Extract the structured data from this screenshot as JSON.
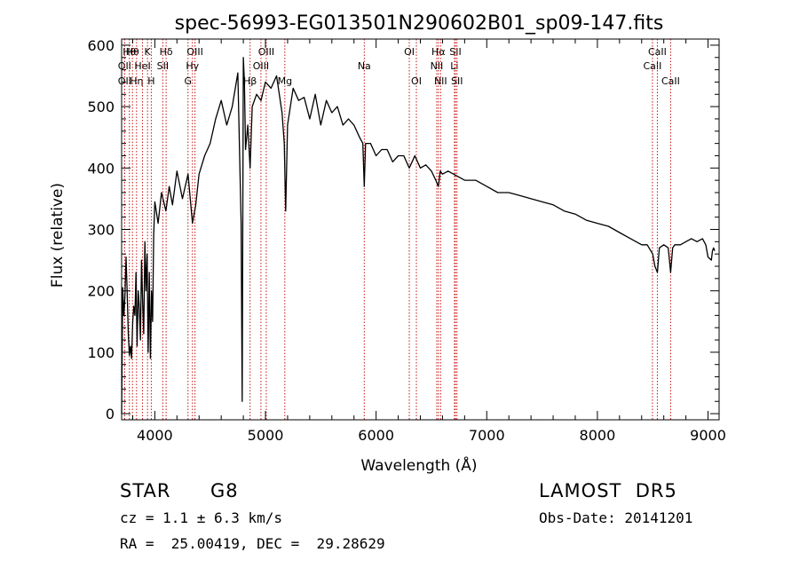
{
  "chart_data": {
    "type": "line",
    "title": "spec-56993-EG013501N290602B01_sp09-147.fits",
    "xlabel": "Wavelength (Å)",
    "ylabel": "Flux (relative)",
    "xlim": [
      3700,
      9100
    ],
    "ylim": [
      -10,
      610
    ],
    "xticks": [
      4000,
      5000,
      6000,
      7000,
      8000,
      9000
    ],
    "yticks": [
      0,
      100,
      200,
      300,
      400,
      500,
      600
    ],
    "grid": false,
    "series": [
      {
        "x": [
          3700,
          3710,
          3720,
          3730,
          3740,
          3750,
          3760,
          3770,
          3780,
          3790,
          3800,
          3810,
          3820,
          3830,
          3840,
          3850,
          3860,
          3870,
          3880,
          3890,
          3900,
          3910,
          3920,
          3930,
          3940,
          3950,
          3960,
          3970,
          3980,
          3990,
          4000,
          4030,
          4060,
          4100,
          4130,
          4160,
          4200,
          4250,
          4300,
          4340,
          4370,
          4400,
          4450,
          4500,
          4550,
          4600,
          4650,
          4700,
          4750,
          4780,
          4790,
          4800,
          4810,
          4820,
          4840,
          4861,
          4880,
          4920,
          4960,
          5000,
          5050,
          5100,
          5150,
          5170,
          5183,
          5200,
          5250,
          5300,
          5350,
          5400,
          5450,
          5500,
          5550,
          5600,
          5650,
          5700,
          5750,
          5800,
          5850,
          5880,
          5893,
          5905,
          5950,
          6000,
          6050,
          6100,
          6150,
          6200,
          6250,
          6300,
          6350,
          6400,
          6450,
          6500,
          6540,
          6563,
          6580,
          6600,
          6650,
          6700,
          6800,
          6900,
          7000,
          7100,
          7200,
          7300,
          7400,
          7500,
          7600,
          7700,
          7800,
          7900,
          8000,
          8100,
          8200,
          8300,
          8400,
          8450,
          8500,
          8520,
          8542,
          8560,
          8600,
          8640,
          8662,
          8680,
          8700,
          8750,
          8800,
          8850,
          8900,
          8950,
          8980,
          9000,
          9030,
          9040,
          9050,
          9060
        ],
        "y": [
          0,
          205,
          160,
          190,
          255,
          200,
          130,
          95,
          110,
          90,
          150,
          175,
          160,
          230,
          110,
          200,
          175,
          120,
          250,
          180,
          130,
          280,
          200,
          260,
          100,
          230,
          90,
          200,
          150,
          290,
          345,
          310,
          360,
          330,
          370,
          340,
          395,
          350,
          390,
          310,
          340,
          390,
          420,
          440,
          480,
          510,
          470,
          500,
          555,
          310,
          20,
          580,
          540,
          430,
          470,
          400,
          500,
          520,
          510,
          540,
          530,
          550,
          490,
          440,
          330,
          470,
          530,
          510,
          515,
          480,
          520,
          470,
          510,
          490,
          500,
          470,
          480,
          470,
          450,
          440,
          370,
          440,
          440,
          420,
          430,
          430,
          410,
          420,
          420,
          400,
          420,
          400,
          405,
          395,
          380,
          370,
          395,
          390,
          395,
          390,
          380,
          380,
          370,
          360,
          360,
          355,
          350,
          345,
          340,
          330,
          325,
          315,
          310,
          305,
          295,
          285,
          275,
          275,
          260,
          240,
          230,
          270,
          275,
          270,
          230,
          270,
          275,
          275,
          280,
          285,
          280,
          285,
          275,
          255,
          250,
          265,
          270,
          265
        ]
      }
    ],
    "line_markers": [
      {
        "wavelength": 3727,
        "label": "OII",
        "row": 2
      },
      {
        "wavelength": 3727,
        "label": "OII",
        "row": 3
      },
      {
        "wavelength": 3770,
        "label": "Hθ",
        "row": 1
      },
      {
        "wavelength": 3798,
        "label": "Hθ",
        "row": 1
      },
      {
        "wavelength": 3835,
        "label": "Hη",
        "row": 3
      },
      {
        "wavelength": 3889,
        "label": "HeI",
        "row": 2
      },
      {
        "wavelength": 3934,
        "label": "K",
        "row": 1
      },
      {
        "wavelength": 3968,
        "label": "H",
        "row": 3
      },
      {
        "wavelength": 4072,
        "label": "SII",
        "row": 2
      },
      {
        "wavelength": 4102,
        "label": "Hδ",
        "row": 1
      },
      {
        "wavelength": 4300,
        "label": "G",
        "row": 3
      },
      {
        "wavelength": 4340,
        "label": "Hγ",
        "row": 2
      },
      {
        "wavelength": 4363,
        "label": "OIII",
        "row": 1
      },
      {
        "wavelength": 4861,
        "label": "Hβ",
        "row": 3
      },
      {
        "wavelength": 4959,
        "label": "OIII",
        "row": 2
      },
      {
        "wavelength": 5007,
        "label": "OIII",
        "row": 1
      },
      {
        "wavelength": 5175,
        "label": "Mg",
        "row": 3
      },
      {
        "wavelength": 5893,
        "label": "Na",
        "row": 2
      },
      {
        "wavelength": 6300,
        "label": "OI",
        "row": 1
      },
      {
        "wavelength": 6364,
        "label": "OI",
        "row": 3
      },
      {
        "wavelength": 6548,
        "label": "NII",
        "row": 2
      },
      {
        "wavelength": 6563,
        "label": "Hα",
        "row": 1
      },
      {
        "wavelength": 6583,
        "label": "NII",
        "row": 3
      },
      {
        "wavelength": 6708,
        "label": "Li",
        "row": 2
      },
      {
        "wavelength": 6717,
        "label": "SII",
        "row": 1
      },
      {
        "wavelength": 6731,
        "label": "SII",
        "row": 3
      },
      {
        "wavelength": 8498,
        "label": "CaII",
        "row": 2
      },
      {
        "wavelength": 8542,
        "label": "CaII",
        "row": 1
      },
      {
        "wavelength": 8662,
        "label": "CaII",
        "row": 3
      }
    ],
    "colors": {
      "spectrum": "#000000",
      "markers": "#c81414",
      "axes": "#000000"
    }
  },
  "footer": {
    "class_label": "STAR",
    "subclass": "G8",
    "survey": "LAMOST  DR5",
    "cz_text": "cz = 1.1 ± 6.3 km/s",
    "obs_date": "Obs-Date: 20141201",
    "coords": "RA =  25.00419, DEC =  29.28629"
  }
}
